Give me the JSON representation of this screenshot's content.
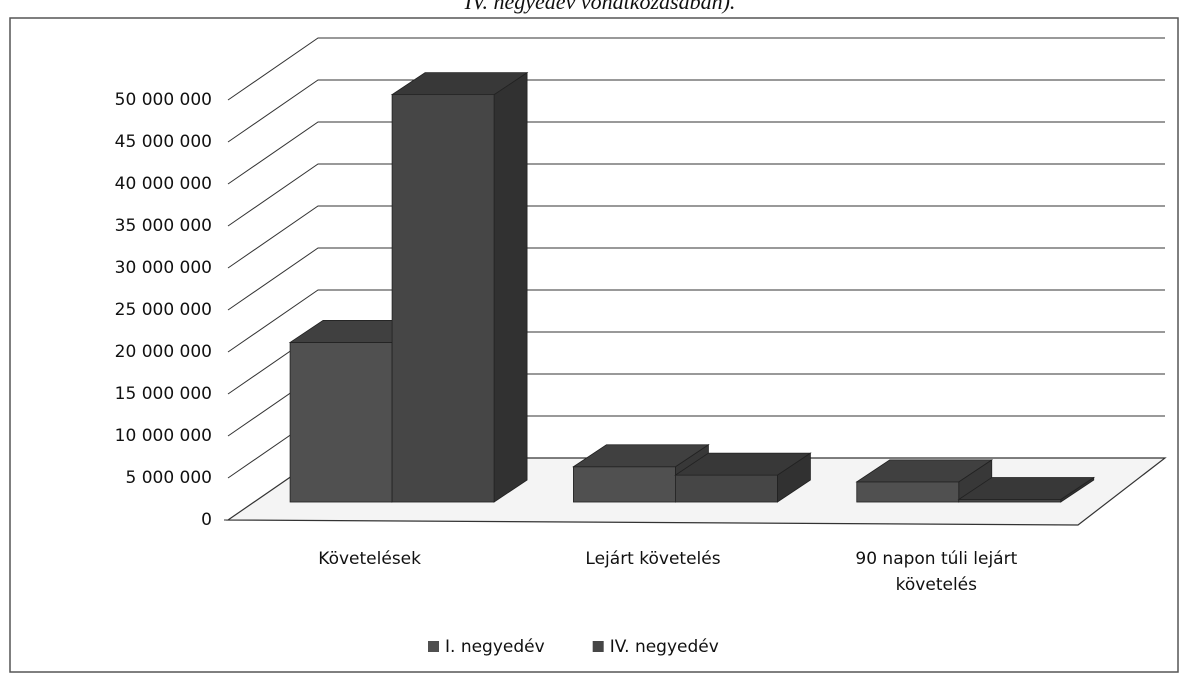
{
  "chart_data": {
    "type": "bar3d",
    "title": "IV. negyedév vonatkozásában).",
    "categories": [
      "Követelések",
      "Lejárt követelés",
      "90 napon túli lejárt követelés"
    ],
    "series": [
      {
        "name": "I. negyedév",
        "color": "#505050",
        "values": [
          19000000,
          4200000,
          2400000
        ]
      },
      {
        "name": "IV. negyedév",
        "color": "#464646",
        "values": [
          48500000,
          3200000,
          300000
        ]
      }
    ],
    "ylim": [
      0,
      50000000
    ],
    "yticks": [
      0,
      {
        "value": 5000000,
        "label": "5 000 000"
      },
      {
        "value": 10000000,
        "label": "10 000 000"
      },
      {
        "value": 15000000,
        "label": "15 000 000"
      },
      {
        "value": 20000000,
        "label": "20 000 000"
      },
      {
        "value": 25000000,
        "label": "25 000 000"
      },
      {
        "value": 30000000,
        "label": "30 000 000"
      },
      {
        "value": 35000000,
        "label": "35 000 000"
      },
      {
        "value": 40000000,
        "label": "40 000 000"
      },
      {
        "value": 45000000,
        "label": "45 000 000"
      },
      {
        "value": 50000000,
        "label": "50 000 000"
      }
    ],
    "grid": true,
    "legend": "bottom"
  }
}
